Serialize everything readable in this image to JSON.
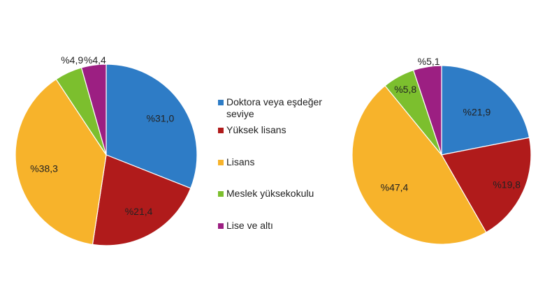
{
  "legend": {
    "placement": "center",
    "items": [
      {
        "label": "Doktora veya eşdeğer seviye",
        "color": "#2e7cc6"
      },
      {
        "label": "Yüksek lisans",
        "color": "#b01b1b"
      },
      {
        "label": "Lisans",
        "color": "#f7b32b"
      },
      {
        "label": "Meslek yüksekokulu",
        "color": "#7cbf2e"
      },
      {
        "label": "Lise ve altı",
        "color": "#9c1f82"
      }
    ]
  },
  "chart_data": [
    {
      "type": "pie",
      "title": "",
      "categories": [
        "Doktora veya eşdeğer seviye",
        "Yüksek lisans",
        "Lisans",
        "Meslek yüksekokulu",
        "Lise ve altı"
      ],
      "values": [
        31.0,
        21.4,
        38.3,
        4.9,
        4.4
      ],
      "labels": [
        "%31,0",
        "%21,4",
        "%38,3",
        "%4,9",
        "%4,4"
      ],
      "colors": [
        "#2e7cc6",
        "#b01b1b",
        "#f7b32b",
        "#7cbf2e",
        "#9c1f82"
      ]
    },
    {
      "type": "pie",
      "title": "",
      "categories": [
        "Doktora veya eşdeğer seviye",
        "Yüksek lisans",
        "Lisans",
        "Meslek yüksekokulu",
        "Lise ve altı"
      ],
      "values": [
        21.9,
        19.8,
        47.4,
        5.8,
        5.1
      ],
      "labels": [
        "%21,9",
        "%19,8",
        "%47,4",
        "%5,8",
        "%5,1"
      ],
      "colors": [
        "#2e7cc6",
        "#b01b1b",
        "#f7b32b",
        "#7cbf2e",
        "#9c1f82"
      ]
    }
  ]
}
